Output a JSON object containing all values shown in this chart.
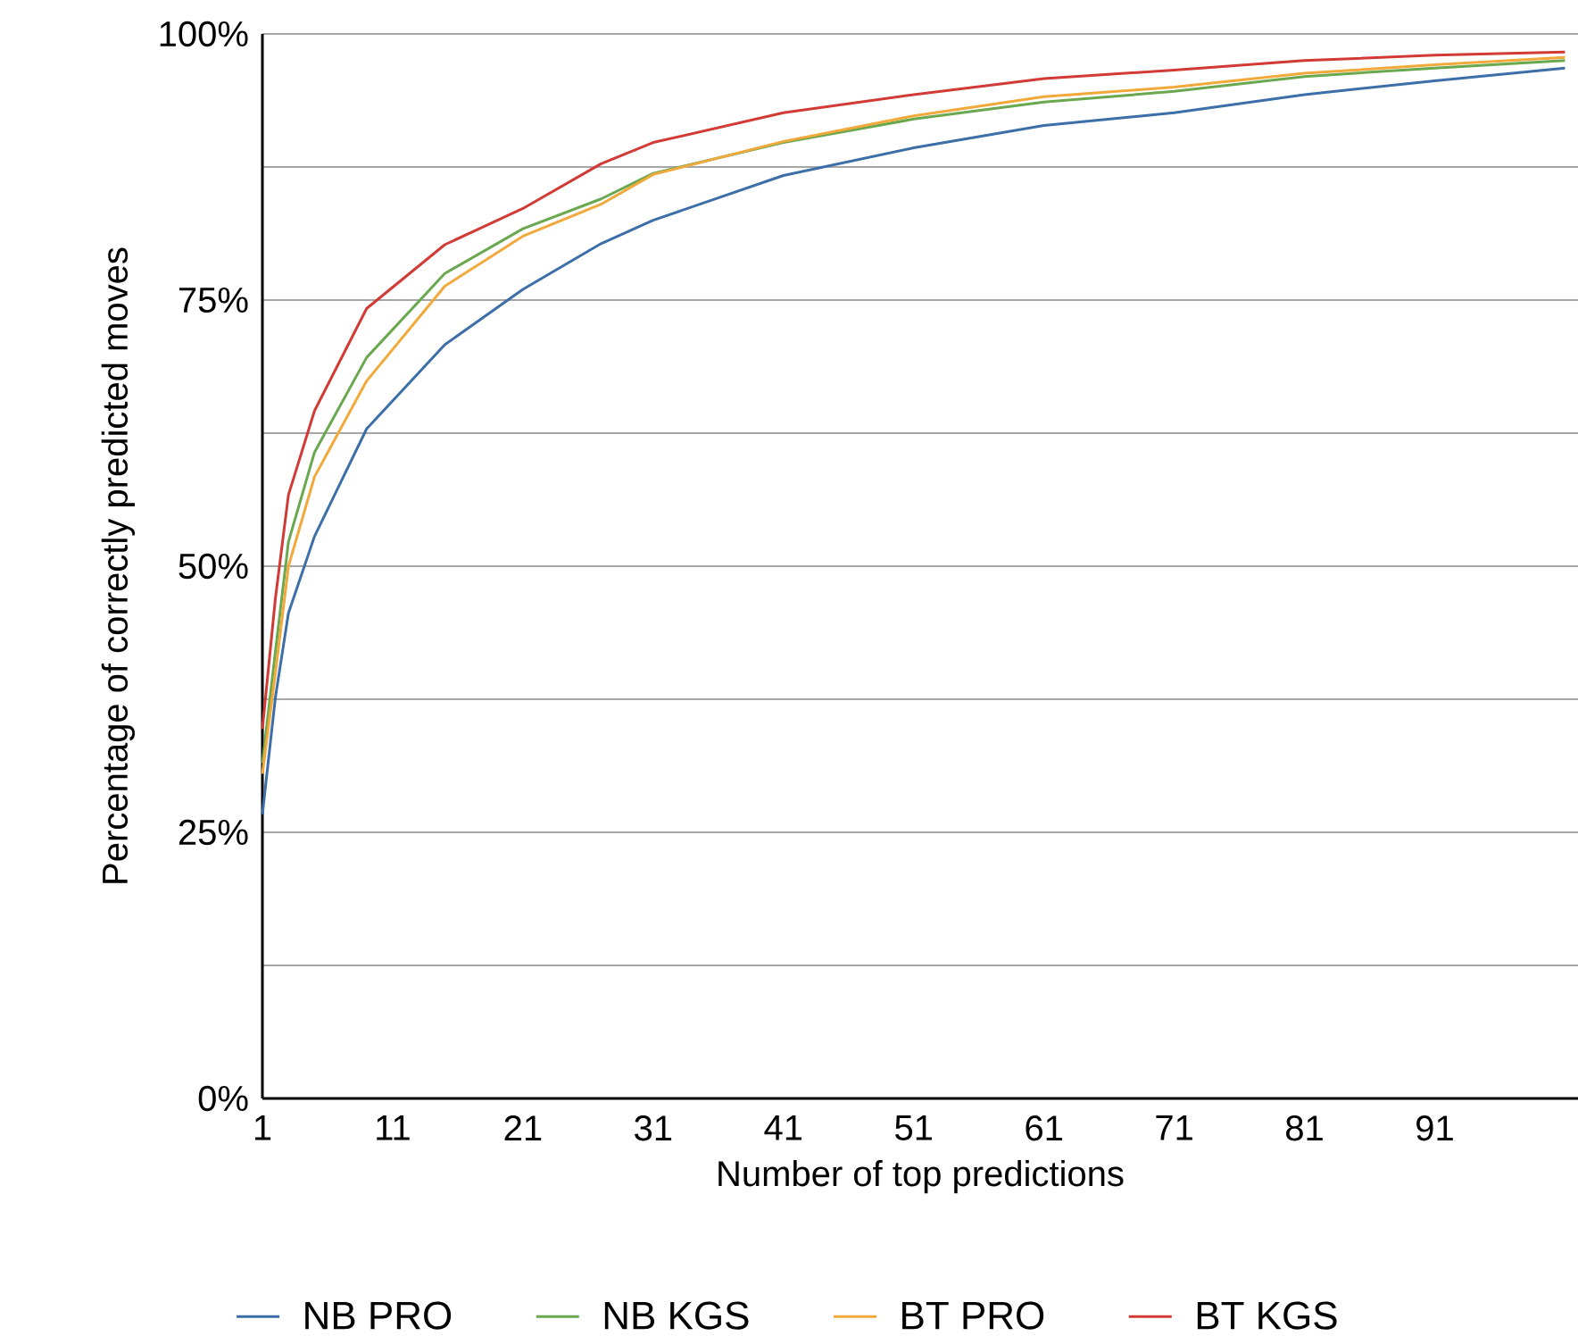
{
  "chart_data": {
    "type": "line",
    "xlabel": "Number of top predictions",
    "ylabel": "Percentage of correctly predicted moves",
    "x": [
      1,
      2,
      3,
      5,
      9,
      15,
      21,
      27,
      31,
      41,
      51,
      61,
      71,
      81,
      91,
      101
    ],
    "series": [
      {
        "name": "NB PRO",
        "color": "#3c6ea8",
        "values": [
          26.7,
          37.7,
          45.6,
          52.8,
          62.9,
          70.8,
          76,
          80.3,
          82.5,
          86.7,
          89.3,
          91.4,
          92.6,
          94.3,
          95.6,
          96.8
        ]
      },
      {
        "name": "NB KGS",
        "color": "#6aa84f",
        "values": [
          31.5,
          42,
          52.3,
          60.7,
          69.6,
          77.5,
          81.7,
          84.5,
          86.9,
          89.8,
          92,
          93.6,
          94.6,
          96,
          96.8,
          97.5
        ]
      },
      {
        "name": "BT PRO",
        "color": "#f0a93a",
        "values": [
          30.5,
          40,
          50,
          58.4,
          67.4,
          76.3,
          81,
          84,
          86.8,
          89.9,
          92.3,
          94.1,
          95,
          96.3,
          97.1,
          97.8
        ]
      },
      {
        "name": "BT KGS",
        "color": "#d23b35",
        "values": [
          34.7,
          47,
          56.7,
          64.6,
          74.2,
          80.2,
          83.6,
          87.8,
          89.8,
          92.6,
          94.3,
          95.8,
          96.6,
          97.5,
          98,
          98.3
        ]
      }
    ],
    "xlim": [
      1,
      102
    ],
    "ylim": [
      0,
      100
    ],
    "xticks": [
      1,
      11,
      21,
      31,
      41,
      51,
      61,
      71,
      81,
      91
    ],
    "yticks": [
      {
        "value": 0,
        "label": "0%"
      },
      {
        "value": 12.5,
        "label": null
      },
      {
        "value": 25,
        "label": "25%"
      },
      {
        "value": 37.5,
        "label": null
      },
      {
        "value": 50,
        "label": "50%"
      },
      {
        "value": 62.5,
        "label": null
      },
      {
        "value": 75,
        "label": "75%"
      },
      {
        "value": 87.5,
        "label": null
      },
      {
        "value": 100,
        "label": "100%"
      }
    ],
    "grid": "y",
    "legend": "bottom",
    "marker": "none",
    "line_style": "solid"
  }
}
